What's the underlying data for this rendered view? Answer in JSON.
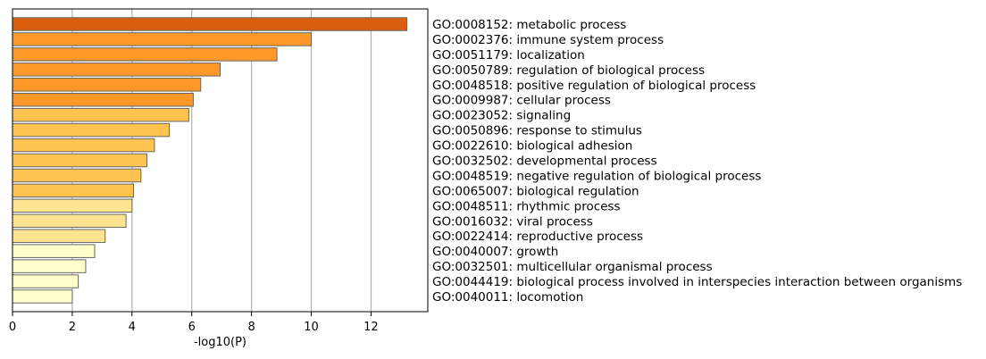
{
  "chart_data": {
    "type": "bar",
    "orientation": "horizontal",
    "categories": [
      "GO:0008152: metabolic process",
      "GO:0002376: immune system process",
      "GO:0051179: localization",
      "GO:0050789: regulation of biological process",
      "GO:0048518: positive regulation of biological process",
      "GO:0009987: cellular process",
      "GO:0023052: signaling",
      "GO:0050896: response to stimulus",
      "GO:0022610: biological adhesion",
      "GO:0032502: developmental process",
      "GO:0048519: negative regulation of biological process",
      "GO:0065007: biological regulation",
      "GO:0048511: rhythmic process",
      "GO:0016032: viral process",
      "GO:0022414: reproductive process",
      "GO:0040007: growth",
      "GO:0032501: multicellular organismal process",
      "GO:0044419: biological process involved in interspecies interaction between organisms",
      "GO:0040011: locomotion"
    ],
    "values": [
      13.2,
      10.0,
      8.85,
      6.95,
      6.3,
      6.05,
      5.9,
      5.25,
      4.75,
      4.5,
      4.3,
      4.05,
      4.0,
      3.8,
      3.1,
      2.75,
      2.45,
      2.2,
      2.0
    ],
    "colors": [
      "#d95f0e",
      "#fe9929",
      "#fe9929",
      "#fe9929",
      "#fe9929",
      "#fe9929",
      "#fec44f",
      "#fec44f",
      "#fec44f",
      "#fec44f",
      "#fec44f",
      "#fec44f",
      "#fee391",
      "#fee391",
      "#fee391",
      "#ffffcc",
      "#ffffcc",
      "#ffffcc",
      "#ffffcc"
    ],
    "xlabel": "-log10(P)",
    "xlim": [
      0,
      13.9
    ],
    "xticks": [
      0,
      2,
      4,
      6,
      8,
      10,
      12
    ],
    "grid": "vertical",
    "label_position": "right"
  }
}
